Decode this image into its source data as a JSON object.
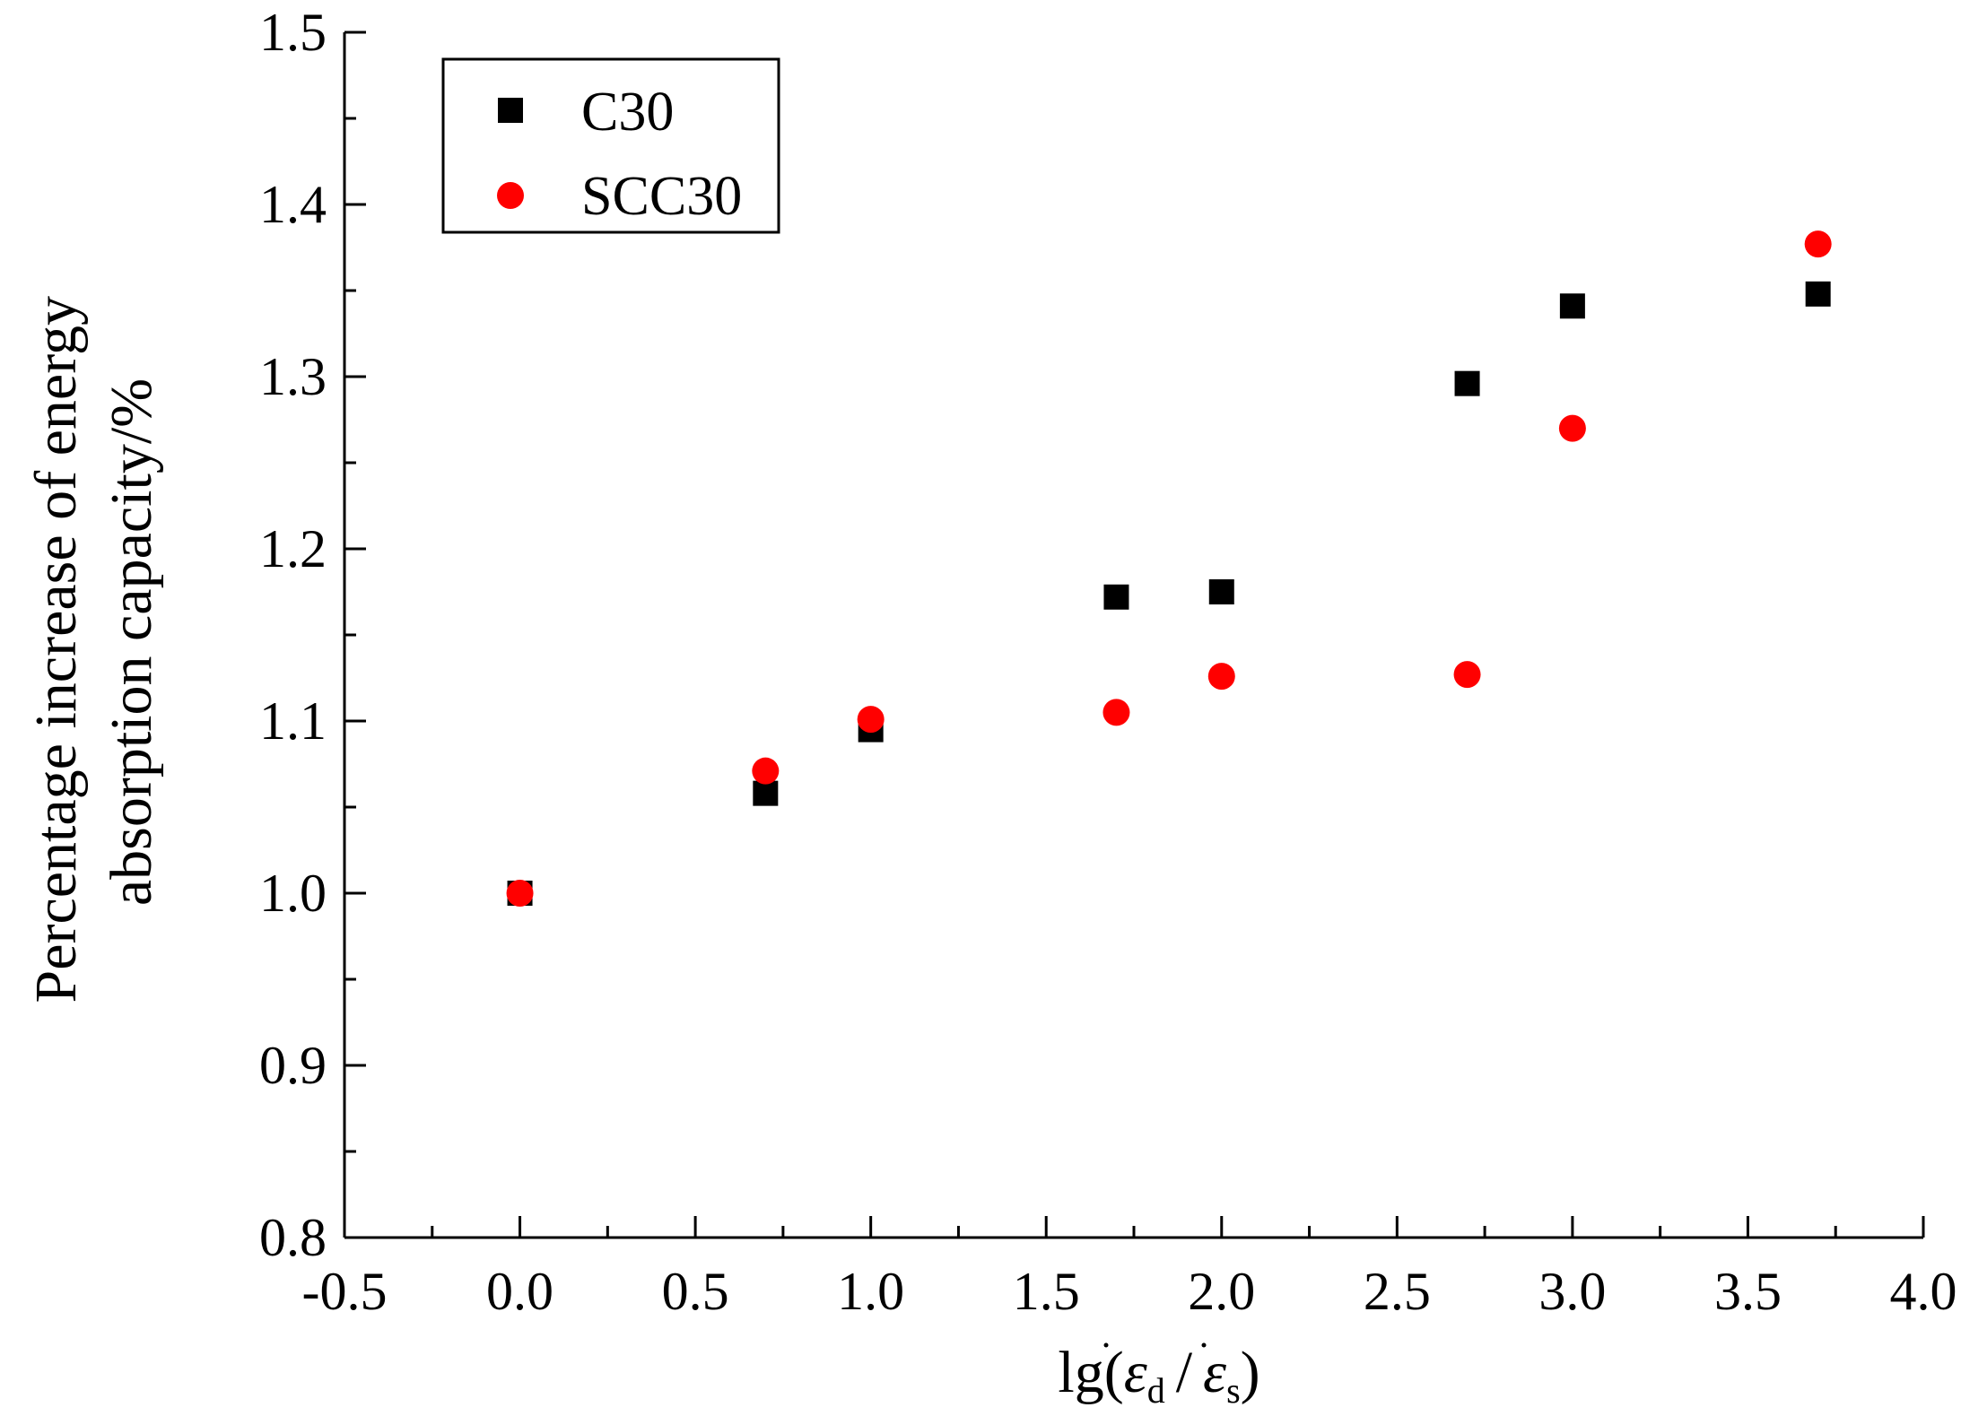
{
  "chart_data": {
    "type": "scatter",
    "title": "",
    "xlabel": {
      "prefix": "lg(",
      "epsilon": "ε",
      "sub_d": "d",
      "slash": "/",
      "sub_s": "s",
      "suffix": ")"
    },
    "ylabel_lines": [
      "Percentage increase of energy",
      "absorption capacity/%"
    ],
    "xlim": [
      -0.5,
      4.0
    ],
    "ylim": [
      0.8,
      1.5
    ],
    "xticks": [
      -0.5,
      0.0,
      0.5,
      1.0,
      1.5,
      2.0,
      2.5,
      3.0,
      3.5,
      4.0
    ],
    "xtick_labels": [
      "-0.5",
      "0.0",
      "0.5",
      "1.0",
      "1.5",
      "2.0",
      "2.5",
      "3.0",
      "3.5",
      "4.0"
    ],
    "yticks": [
      0.8,
      0.9,
      1.0,
      1.1,
      1.2,
      1.3,
      1.4,
      1.5
    ],
    "ytick_labels": [
      "0.8",
      "0.9",
      "1.0",
      "1.1",
      "1.2",
      "1.3",
      "1.4",
      "1.5"
    ],
    "legend_position": "top-left",
    "series": [
      {
        "name": "C30",
        "marker": "square",
        "color": "#000000",
        "x": [
          0.0,
          0.7,
          1.0,
          1.7,
          2.0,
          2.7,
          3.0,
          3.7
        ],
        "y": [
          1.0,
          1.058,
          1.095,
          1.172,
          1.175,
          1.296,
          1.341,
          1.348
        ]
      },
      {
        "name": "SCC30",
        "marker": "circle",
        "color": "#ff0000",
        "x": [
          0.0,
          0.7,
          1.0,
          1.7,
          2.0,
          2.7,
          3.0,
          3.7
        ],
        "y": [
          1.0,
          1.071,
          1.101,
          1.105,
          1.126,
          1.127,
          1.27,
          1.377
        ]
      }
    ]
  }
}
